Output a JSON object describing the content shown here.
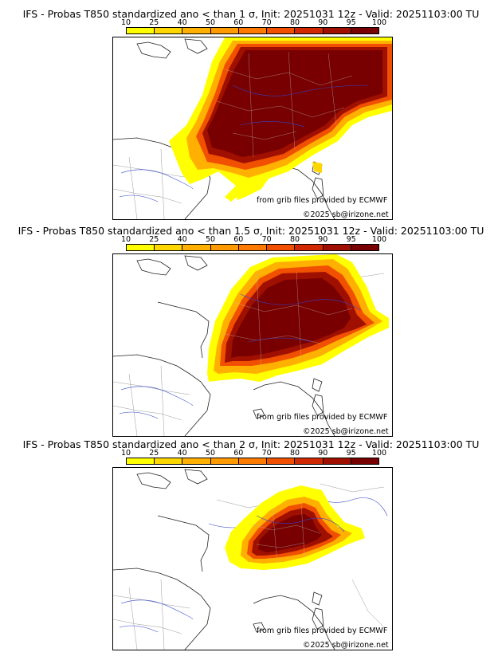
{
  "legend": {
    "ticks": [
      "10",
      "25",
      "40",
      "50",
      "60",
      "70",
      "80",
      "90",
      "95",
      "100"
    ],
    "colors": [
      "#ffff00",
      "#ffd700",
      "#ffb000",
      "#ff9a00",
      "#ff7a00",
      "#f05000",
      "#d02800",
      "#a01000",
      "#780000"
    ]
  },
  "credits": {
    "source": "from grib files provided by ECMWF",
    "copyright": "©2025 sb@irizone.net"
  },
  "panels": [
    {
      "title": "IFS - Probas T850  standardized ano < than 1 σ, Init: 20251031 12z - Valid: 20251103:00 TU",
      "threshold_sigma": "1"
    },
    {
      "title": "IFS - Probas T850  standardized ano < than 1.5 σ, Init: 20251031 12z - Valid: 20251103:00 TU",
      "threshold_sigma": "1.5"
    },
    {
      "title": "IFS - Probas T850  standardized ano < than 2 σ, Init: 20251031 12z - Valid: 20251103:00 TU",
      "threshold_sigma": "2"
    }
  ]
}
